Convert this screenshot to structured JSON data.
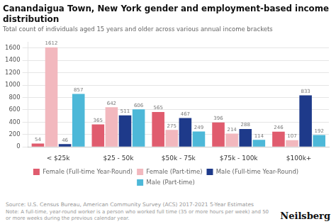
{
  "chart_data": {
    "type": "bar",
    "title": "Canandaigua Town, New York gender and employment-based income\ndistribution",
    "subtitle": "Total count of individuals aged 15 years and older across various annual income brackets",
    "categories": [
      "< $25k",
      "$25 - 50k",
      "$50k - 75k",
      "$75k - 100k",
      "$100k+"
    ],
    "series": [
      {
        "name": "Female (Full-time Year-Round)",
        "color": "#e05c6e",
        "values": [
          54,
          365,
          565,
          396,
          246
        ]
      },
      {
        "name": "Female (Part-time)",
        "color": "#f2b8be",
        "values": [
          1612,
          642,
          275,
          214,
          107
        ]
      },
      {
        "name": "Male (Full-time Year-Round)",
        "color": "#1e3a8a",
        "values": [
          46,
          511,
          467,
          288,
          833
        ]
      },
      {
        "name": "Male (Part-time)",
        "color": "#4db8d8",
        "values": [
          857,
          606,
          249,
          114,
          192
        ]
      }
    ],
    "ylim": [
      0,
      1700
    ],
    "yticks": [
      0,
      200,
      400,
      600,
      800,
      1000,
      1200,
      1400,
      1600
    ],
    "grid": true,
    "legend": "bottom",
    "data_labels": true,
    "annotations": [
      "Source: U.S. Census Bureau, American Community Survey (ACS) 2017-2021 5-Year Estimates",
      "Note: A full-time, year-round worker is a person who worked full time (35 or more hours per week) and 50 or more weeks during the previous calendar year.",
      "Neilsberg"
    ]
  }
}
